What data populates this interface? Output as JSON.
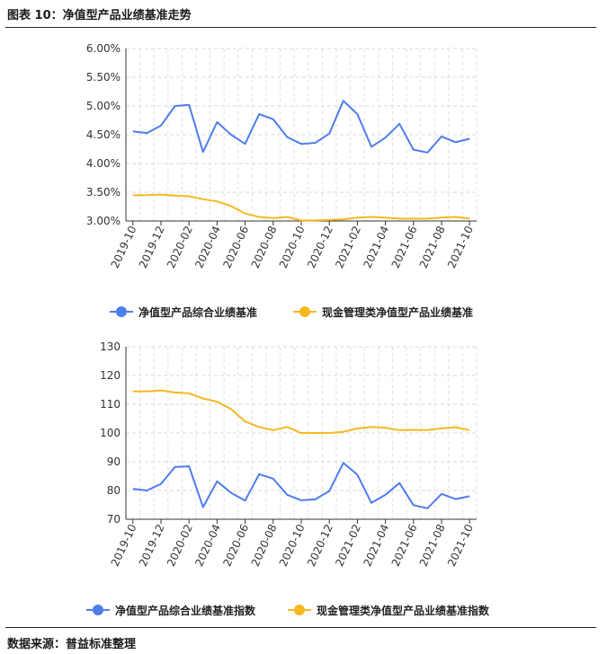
{
  "header": {
    "title": "图表 10：净值型产品业绩基准走势"
  },
  "footer": {
    "source": "数据来源：普益标准整理"
  },
  "chart_data": [
    {
      "type": "line",
      "x": [
        "2019-10",
        "2019-11",
        "2019-12",
        "2020-01",
        "2020-02",
        "2020-03",
        "2020-04",
        "2020-05",
        "2020-06",
        "2020-07",
        "2020-08",
        "2020-09",
        "2020-10",
        "2020-11",
        "2020-12",
        "2021-01",
        "2021-02",
        "2021-03",
        "2021-04",
        "2021-05",
        "2021-06",
        "2021-07",
        "2021-08",
        "2021-09",
        "2021-10"
      ],
      "tick_labels": [
        "2019-10",
        "2019-12",
        "2020-02",
        "2020-04",
        "2020-06",
        "2020-08",
        "2020-10",
        "2020-12",
        "2021-02",
        "2021-04",
        "2021-06",
        "2021-08",
        "2021-10"
      ],
      "yticks": [
        "3.00%",
        "3.50%",
        "4.00%",
        "4.50%",
        "5.00%",
        "5.50%",
        "6.00%"
      ],
      "ylim": [
        3.0,
        6.0
      ],
      "grid": true,
      "legend": "bottom",
      "series": [
        {
          "name": "净值型产品综合业绩基准",
          "color": "#4e7ded",
          "values": [
            4.56,
            4.53,
            4.66,
            5.0,
            5.02,
            4.2,
            4.72,
            4.5,
            4.34,
            4.86,
            4.77,
            4.46,
            4.34,
            4.36,
            4.52,
            5.09,
            4.86,
            4.29,
            4.45,
            4.69,
            4.24,
            4.19,
            4.47,
            4.37,
            4.43
          ]
        },
        {
          "name": "现金管理类净值型产品业绩基准",
          "color": "#f5b820",
          "values": [
            3.45,
            3.45,
            3.46,
            3.44,
            3.43,
            3.38,
            3.34,
            3.26,
            3.13,
            3.07,
            3.05,
            3.07,
            3.01,
            3.01,
            3.02,
            3.03,
            3.06,
            3.07,
            3.06,
            3.04,
            3.04,
            3.04,
            3.06,
            3.07,
            3.04
          ]
        }
      ]
    },
    {
      "type": "line",
      "x": [
        "2019-10",
        "2019-11",
        "2019-12",
        "2020-01",
        "2020-02",
        "2020-03",
        "2020-04",
        "2020-05",
        "2020-06",
        "2020-07",
        "2020-08",
        "2020-09",
        "2020-10",
        "2020-11",
        "2020-12",
        "2021-01",
        "2021-02",
        "2021-03",
        "2021-04",
        "2021-05",
        "2021-06",
        "2021-07",
        "2021-08",
        "2021-09",
        "2021-10"
      ],
      "tick_labels": [
        "2019-10",
        "2019-12",
        "2020-02",
        "2020-04",
        "2020-06",
        "2020-08",
        "2020-10",
        "2020-12",
        "2021-02",
        "2021-04",
        "2021-06",
        "2021-08",
        "2021-10"
      ],
      "yticks": [
        "70",
        "80",
        "90",
        "100",
        "110",
        "120",
        "130"
      ],
      "ylim": [
        70,
        130
      ],
      "grid": true,
      "legend": "bottom",
      "series": [
        {
          "name": "净值型产品综合业绩基准指数",
          "color": "#4e7ded",
          "values": [
            80.6,
            80.0,
            82.3,
            88.2,
            88.4,
            74.2,
            83.2,
            79.2,
            76.5,
            85.7,
            84.1,
            78.5,
            76.6,
            76.9,
            79.8,
            89.6,
            85.5,
            75.7,
            78.5,
            82.6,
            74.9,
            73.8,
            78.8,
            77.0,
            78.0
          ]
        },
        {
          "name": "现金管理类净值型产品业绩基准指数",
          "color": "#f5b820",
          "values": [
            114.5,
            114.5,
            114.8,
            114.1,
            113.8,
            112.0,
            110.9,
            108.3,
            104.0,
            102.1,
            101.0,
            102.1,
            100.0,
            100.0,
            100.0,
            100.4,
            101.6,
            102.1,
            101.8,
            101.0,
            101.1,
            101.0,
            101.6,
            102.0,
            101.0
          ]
        }
      ]
    }
  ]
}
